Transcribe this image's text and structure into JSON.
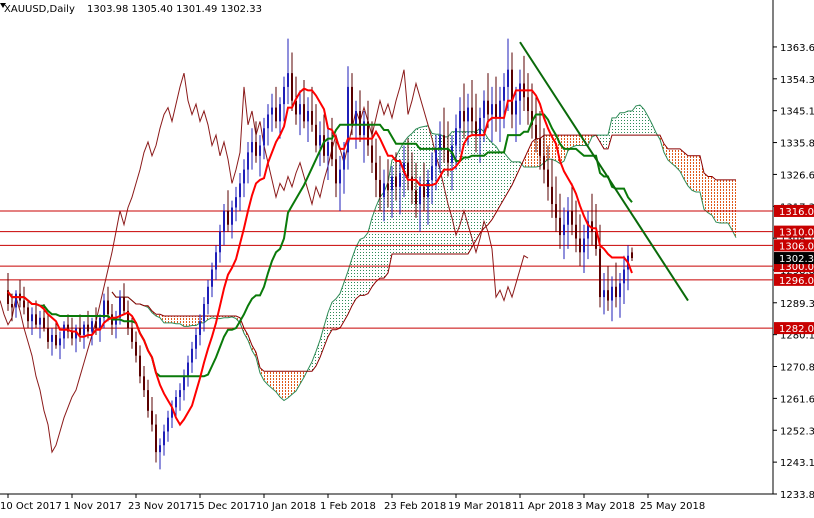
{
  "header": {
    "symbol": "XAUUSD,Daily",
    "ohlc": "1303.98 1305.40 1301.49 1302.33"
  },
  "colors": {
    "background": "#ffffff",
    "axis": "#000000",
    "bull_candle": "#1f1fb8",
    "bear_candle": "#5a0000",
    "tenkan": "#ff0000",
    "kijun": "#0a7a0a",
    "chikou": "#8b1a1a",
    "senkou_a": "#2e8b57",
    "senkou_b": "#8b0000",
    "cloud_bull": "#2e8b57",
    "cloud_bear": "#e05a1a",
    "hline": "#c80000",
    "trendline": "#0a6a0a",
    "label_red": "#c80000",
    "current_price": "#000000"
  },
  "chart_data": {
    "type": "candlestick",
    "title": "XAUUSD,Daily",
    "ylim": [
      1233.85,
      1372
    ],
    "y_ticks": [
      "1363.60",
      "1354.35",
      "1345.10",
      "1335.85",
      "1326.60",
      "1317.35",
      "1308.10",
      "1298.85",
      "1289.35",
      "1280.10",
      "1270.85",
      "1261.60",
      "1252.35",
      "1243.10",
      "1233.85"
    ],
    "x_ticks": [
      "10 Oct 2017",
      "1 Nov 2017",
      "23 Nov 2017",
      "15 Dec 2017",
      "10 Jan 2018",
      "1 Feb 2018",
      "23 Feb 2018",
      "19 Mar 2018",
      "11 Apr 2018",
      "3 May 2018",
      "25 May 2018"
    ],
    "x_tick_index": [
      0,
      16,
      32,
      48,
      64,
      80,
      96,
      112,
      128,
      144,
      160
    ],
    "candles": [
      [
        1293,
        1298,
        1287,
        1289
      ],
      [
        1289,
        1292,
        1284,
        1288
      ],
      [
        1288,
        1293,
        1285,
        1292
      ],
      [
        1292,
        1296,
        1288,
        1290
      ],
      [
        1290,
        1294,
        1286,
        1288
      ],
      [
        1288,
        1290,
        1282,
        1284
      ],
      [
        1284,
        1288,
        1280,
        1286
      ],
      [
        1286,
        1290,
        1282,
        1283
      ],
      [
        1283,
        1287,
        1279,
        1285
      ],
      [
        1285,
        1289,
        1281,
        1282
      ],
      [
        1282,
        1286,
        1276,
        1278
      ],
      [
        1278,
        1282,
        1274,
        1280
      ],
      [
        1280,
        1284,
        1276,
        1277
      ],
      [
        1277,
        1281,
        1273,
        1279
      ],
      [
        1279,
        1284,
        1276,
        1283
      ],
      [
        1283,
        1286,
        1279,
        1281
      ],
      [
        1281,
        1285,
        1277,
        1279
      ],
      [
        1279,
        1283,
        1275,
        1282
      ],
      [
        1282,
        1286,
        1278,
        1280
      ],
      [
        1280,
        1284,
        1276,
        1283
      ],
      [
        1283,
        1287,
        1279,
        1281
      ],
      [
        1281,
        1285,
        1277,
        1284
      ],
      [
        1284,
        1288,
        1280,
        1282
      ],
      [
        1282,
        1286,
        1278,
        1285
      ],
      [
        1285,
        1292,
        1282,
        1290
      ],
      [
        1290,
        1294,
        1284,
        1286
      ],
      [
        1286,
        1289,
        1280,
        1283
      ],
      [
        1283,
        1287,
        1279,
        1285
      ],
      [
        1285,
        1293,
        1283,
        1291
      ],
      [
        1291,
        1295,
        1286,
        1287
      ],
      [
        1287,
        1290,
        1280,
        1282
      ],
      [
        1282,
        1285,
        1276,
        1278
      ],
      [
        1278,
        1281,
        1272,
        1274
      ],
      [
        1274,
        1277,
        1266,
        1268
      ],
      [
        1268,
        1271,
        1262,
        1264
      ],
      [
        1264,
        1267,
        1256,
        1258
      ],
      [
        1258,
        1262,
        1252,
        1254
      ],
      [
        1254,
        1257,
        1243,
        1246
      ],
      [
        1246,
        1250,
        1241,
        1248
      ],
      [
        1248,
        1254,
        1245,
        1252
      ],
      [
        1252,
        1258,
        1249,
        1256
      ],
      [
        1256,
        1261,
        1253,
        1259
      ],
      [
        1259,
        1264,
        1256,
        1262
      ],
      [
        1262,
        1266,
        1258,
        1264
      ],
      [
        1264,
        1270,
        1261,
        1268
      ],
      [
        1268,
        1274,
        1265,
        1272
      ],
      [
        1272,
        1278,
        1269,
        1276
      ],
      [
        1276,
        1282,
        1273,
        1280
      ],
      [
        1280,
        1286,
        1277,
        1284
      ],
      [
        1284,
        1291,
        1281,
        1289
      ],
      [
        1289,
        1296,
        1286,
        1294
      ],
      [
        1294,
        1301,
        1291,
        1299
      ],
      [
        1299,
        1306,
        1296,
        1304
      ],
      [
        1304,
        1312,
        1301,
        1310
      ],
      [
        1310,
        1318,
        1306,
        1316
      ],
      [
        1316,
        1322,
        1310,
        1312
      ],
      [
        1312,
        1319,
        1308,
        1317
      ],
      [
        1317,
        1323,
        1313,
        1320
      ],
      [
        1320,
        1327,
        1316,
        1324
      ],
      [
        1324,
        1331,
        1320,
        1328
      ],
      [
        1328,
        1336,
        1324,
        1333
      ],
      [
        1333,
        1340,
        1328,
        1336
      ],
      [
        1336,
        1342,
        1330,
        1332
      ],
      [
        1332,
        1338,
        1326,
        1335
      ],
      [
        1335,
        1343,
        1331,
        1340
      ],
      [
        1340,
        1347,
        1335,
        1344
      ],
      [
        1344,
        1350,
        1339,
        1346
      ],
      [
        1346,
        1352,
        1340,
        1342
      ],
      [
        1342,
        1349,
        1337,
        1347
      ],
      [
        1347,
        1355,
        1342,
        1352
      ],
      [
        1352,
        1366,
        1347,
        1356
      ],
      [
        1356,
        1362,
        1345,
        1348
      ],
      [
        1348,
        1355,
        1341,
        1344
      ],
      [
        1344,
        1351,
        1338,
        1347
      ],
      [
        1347,
        1354,
        1340,
        1342
      ],
      [
        1342,
        1349,
        1336,
        1345
      ],
      [
        1345,
        1352,
        1339,
        1341
      ],
      [
        1341,
        1347,
        1333,
        1335
      ],
      [
        1335,
        1342,
        1329,
        1338
      ],
      [
        1338,
        1344,
        1330,
        1332
      ],
      [
        1332,
        1340,
        1325,
        1336
      ],
      [
        1336,
        1343,
        1329,
        1331
      ],
      [
        1331,
        1337,
        1320,
        1324
      ],
      [
        1324,
        1332,
        1316,
        1328
      ],
      [
        1328,
        1336,
        1321,
        1333
      ],
      [
        1333,
        1358,
        1328,
        1352
      ],
      [
        1352,
        1356,
        1338,
        1341
      ],
      [
        1341,
        1348,
        1334,
        1345
      ],
      [
        1345,
        1351,
        1336,
        1338
      ],
      [
        1338,
        1345,
        1330,
        1342
      ],
      [
        1342,
        1348,
        1332,
        1335
      ],
      [
        1335,
        1342,
        1327,
        1330
      ],
      [
        1330,
        1337,
        1320,
        1325
      ],
      [
        1325,
        1332,
        1316,
        1320
      ],
      [
        1320,
        1328,
        1313,
        1324
      ],
      [
        1324,
        1331,
        1317,
        1322
      ],
      [
        1322,
        1329,
        1314,
        1326
      ],
      [
        1326,
        1333,
        1319,
        1323
      ],
      [
        1323,
        1331,
        1315,
        1327
      ],
      [
        1327,
        1335,
        1320,
        1330
      ],
      [
        1330,
        1337,
        1322,
        1326
      ],
      [
        1326,
        1333,
        1318,
        1322
      ],
      [
        1322,
        1330,
        1314,
        1318
      ],
      [
        1318,
        1326,
        1310,
        1323
      ],
      [
        1323,
        1330,
        1316,
        1320
      ],
      [
        1320,
        1328,
        1312,
        1325
      ],
      [
        1325,
        1333,
        1318,
        1329
      ],
      [
        1329,
        1338,
        1322,
        1334
      ],
      [
        1334,
        1342,
        1327,
        1338
      ],
      [
        1338,
        1346,
        1330,
        1334
      ],
      [
        1334,
        1342,
        1326,
        1330
      ],
      [
        1330,
        1338,
        1322,
        1335
      ],
      [
        1335,
        1344,
        1328,
        1340
      ],
      [
        1340,
        1349,
        1333,
        1345
      ],
      [
        1345,
        1353,
        1337,
        1342
      ],
      [
        1342,
        1350,
        1335,
        1346
      ],
      [
        1346,
        1354,
        1338,
        1342
      ],
      [
        1342,
        1350,
        1333,
        1338
      ],
      [
        1338,
        1346,
        1330,
        1343
      ],
      [
        1343,
        1351,
        1336,
        1348
      ],
      [
        1348,
        1356,
        1340,
        1344
      ],
      [
        1344,
        1352,
        1336,
        1347
      ],
      [
        1347,
        1355,
        1339,
        1343
      ],
      [
        1343,
        1352,
        1336,
        1348
      ],
      [
        1348,
        1356,
        1340,
        1352
      ],
      [
        1352,
        1366,
        1345,
        1357
      ],
      [
        1357,
        1362,
        1340,
        1344
      ],
      [
        1344,
        1352,
        1336,
        1348
      ],
      [
        1348,
        1357,
        1341,
        1353
      ],
      [
        1353,
        1361,
        1345,
        1349
      ],
      [
        1349,
        1356,
        1341,
        1345
      ],
      [
        1345,
        1353,
        1337,
        1341
      ],
      [
        1341,
        1349,
        1333,
        1337
      ],
      [
        1337,
        1345,
        1328,
        1332
      ],
      [
        1332,
        1340,
        1324,
        1328
      ],
      [
        1328,
        1335,
        1319,
        1323
      ],
      [
        1323,
        1331,
        1314,
        1318
      ],
      [
        1318,
        1326,
        1310,
        1314
      ],
      [
        1314,
        1321,
        1305,
        1309
      ],
      [
        1309,
        1317,
        1302,
        1312
      ],
      [
        1312,
        1320,
        1305,
        1316
      ],
      [
        1316,
        1324,
        1309,
        1312
      ],
      [
        1312,
        1319,
        1304,
        1308
      ],
      [
        1308,
        1315,
        1300,
        1304
      ],
      [
        1304,
        1312,
        1298,
        1308
      ],
      [
        1308,
        1316,
        1302,
        1313
      ],
      [
        1313,
        1321,
        1306,
        1310
      ],
      [
        1310,
        1318,
        1303,
        1305
      ],
      [
        1305,
        1312,
        1288,
        1291
      ],
      [
        1291,
        1298,
        1286,
        1293
      ],
      [
        1293,
        1300,
        1287,
        1290
      ],
      [
        1290,
        1297,
        1284,
        1294
      ],
      [
        1294,
        1301,
        1288,
        1291
      ],
      [
        1291,
        1298,
        1285,
        1295
      ],
      [
        1295,
        1303,
        1289,
        1299
      ],
      [
        1299,
        1306,
        1293,
        1303
      ],
      [
        1303.98,
        1305.4,
        1301.49,
        1302.33
      ]
    ],
    "horizontal_levels": [
      1316.0,
      1310.0,
      1306.0,
      1300.0,
      1296.0,
      1282.0
    ],
    "current_price": 1302.33,
    "trendline": [
      [
        128,
        1365
      ],
      [
        170,
        1290
      ]
    ]
  }
}
